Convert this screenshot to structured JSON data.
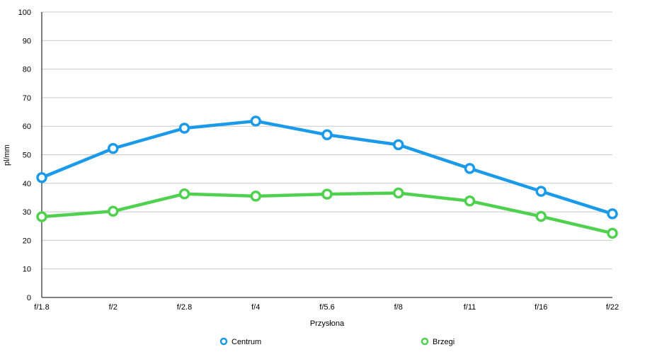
{
  "chart_data": {
    "type": "line",
    "title": "",
    "xlabel": "Przysłona",
    "ylabel": "pl/mm",
    "categories": [
      "f/1.8",
      "f/2",
      "f/2.8",
      "f/4",
      "f/5.6",
      "f/8",
      "f/11",
      "f/16",
      "f/22"
    ],
    "ylim": [
      0,
      100
    ],
    "yticks": [
      0,
      10,
      20,
      30,
      40,
      50,
      60,
      70,
      80,
      90,
      100
    ],
    "grid": true,
    "legend_position": "bottom",
    "series": [
      {
        "name": "Centrum",
        "color": "#1a9ae8",
        "values": [
          42,
          52.2,
          59.3,
          61.8,
          57,
          53.5,
          45.2,
          37.2,
          29.3
        ]
      },
      {
        "name": "Brzegi",
        "color": "#4fd14f",
        "values": [
          28.3,
          30.2,
          36.3,
          35.5,
          36.2,
          36.6,
          33.8,
          28.4,
          22.5
        ]
      }
    ]
  }
}
